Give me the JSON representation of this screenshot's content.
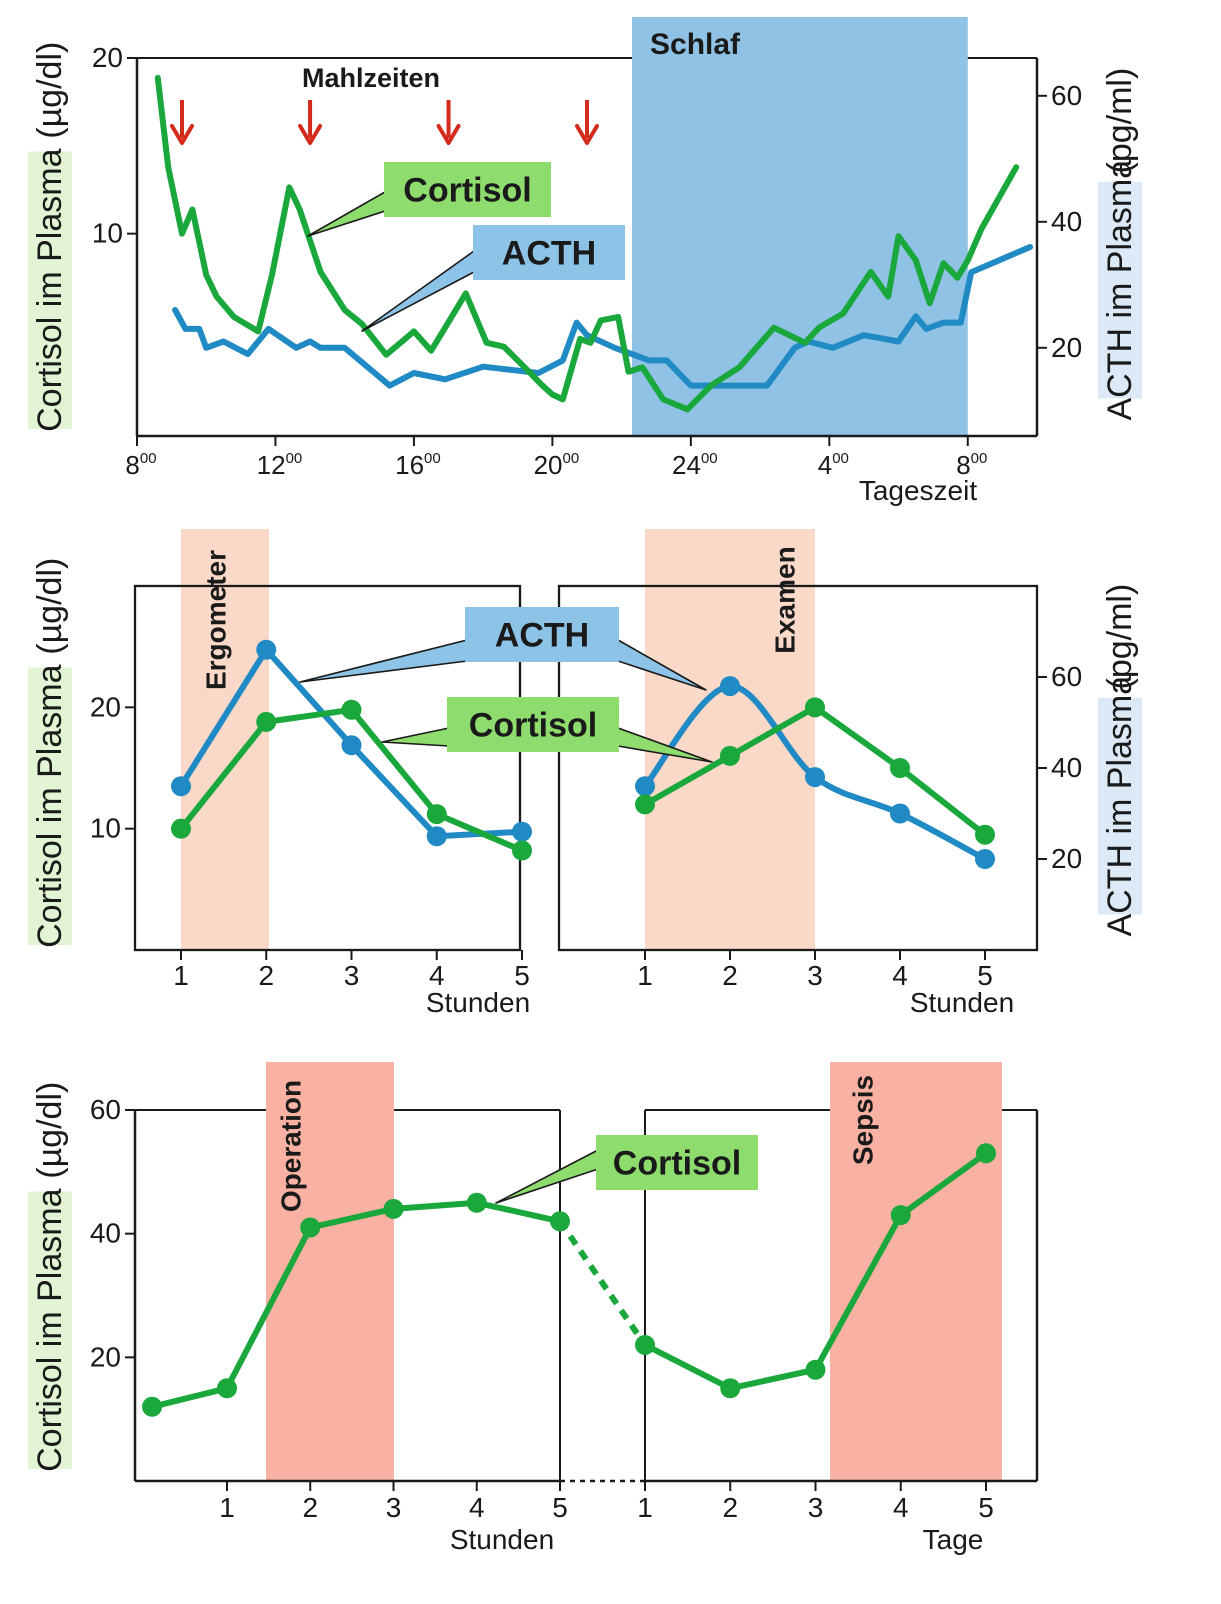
{
  "colors": {
    "cortisol": "#1aa83c",
    "acth": "#1f8ac4",
    "cortisol_box": "#8edc6e",
    "acth_box": "#8cc3e6",
    "schlaf_band": "#8fc2e4",
    "light_band": "#fbd9c9",
    "strong_band": "#f8b1a2",
    "arrow": "#d42a1b",
    "axis_label_green_bg": "#e3f4d4",
    "axis_label_blue_bg": "#dbeaf6"
  },
  "icons": {
    "meal_marker": "red-down-arrow-icon"
  },
  "labels": {
    "cortisol_axis": "Cortisol im Plasma",
    "cortisol_unit": "(µg/dl)",
    "acth_axis": "ACTH im Plasma",
    "acth_unit": "(pg/ml)",
    "cortisol": "Cortisol",
    "acth": "ACTH"
  },
  "chart_data": [
    {
      "type": "line",
      "xlabel": "Tageszeit",
      "x_ticks": [
        {
          "base": "8",
          "sup": "00"
        },
        {
          "base": "12",
          "sup": "00"
        },
        {
          "base": "16",
          "sup": "00"
        },
        {
          "base": "20",
          "sup": "00"
        },
        {
          "base": "24",
          "sup": "00"
        },
        {
          "base": "4",
          "sup": "00"
        },
        {
          "base": "8",
          "sup": "00"
        }
      ],
      "xlim": [
        8,
        34
      ],
      "ylim_left": [
        4.5,
        20
      ],
      "ylim_right": [
        6,
        66
      ],
      "y_ticks_left": [
        "10",
        "20"
      ],
      "y_ticks_right": [
        "20",
        "40",
        "60"
      ],
      "annotations": {
        "meals": "Mahlzeiten",
        "sleep": "Schlaf",
        "meal_times": [
          9.3,
          13.0,
          17.0,
          21.0
        ],
        "sleep_range": [
          22.3,
          32.0
        ]
      },
      "series": [
        {
          "name": "Cortisol",
          "axis": "left",
          "x": [
            8.6,
            8.9,
            9.3,
            9.6,
            10.0,
            10.3,
            10.8,
            11.5,
            11.9,
            12.4,
            12.7,
            13.3,
            14.0,
            14.5,
            15.2,
            16.0,
            16.5,
            16.9,
            17.5,
            18.1,
            18.6,
            19.2,
            19.7,
            20.0,
            20.3,
            20.8,
            21.1,
            21.4,
            21.9,
            22.2,
            22.6,
            23.2,
            23.9,
            24.6,
            25.4,
            26.4,
            27.3,
            27.7,
            28.4,
            29.2,
            29.7,
            30.0,
            30.5,
            30.9,
            31.3,
            31.7,
            32.0,
            32.4,
            33.4
          ],
          "y": [
            18.5,
            13.0,
            10.0,
            11.0,
            8.5,
            7.8,
            7.2,
            6.8,
            8.5,
            12.0,
            11.0,
            8.6,
            7.4,
            7.0,
            6.2,
            6.8,
            6.3,
            6.9,
            7.9,
            6.5,
            6.4,
            5.9,
            5.5,
            5.3,
            5.2,
            6.6,
            6.5,
            7.1,
            7.2,
            5.8,
            5.9,
            5.2,
            5.0,
            5.5,
            5.9,
            6.9,
            6.5,
            6.9,
            7.3,
            8.6,
            7.8,
            9.9,
            9.0,
            7.6,
            8.9,
            8.4,
            9.0,
            10.2,
            13.0
          ]
        },
        {
          "name": "ACTH",
          "axis": "right",
          "x": [
            9.1,
            9.4,
            9.8,
            10.0,
            10.5,
            11.2,
            11.8,
            12.6,
            13.0,
            13.3,
            14.0,
            15.3,
            16.0,
            16.9,
            18.0,
            19.6,
            20.3,
            20.7,
            21.0,
            21.8,
            22.8,
            23.3,
            24.0,
            25.0,
            26.2,
            27.0,
            27.4,
            28.1,
            29.0,
            30.0,
            30.5,
            30.8,
            31.3,
            31.8,
            32.1,
            33.8
          ],
          "y": [
            26,
            23,
            23,
            20,
            21,
            19,
            23,
            20,
            21,
            20,
            20,
            14,
            16,
            15,
            17,
            16,
            18,
            24,
            22,
            20,
            18,
            18,
            14,
            14,
            14,
            20,
            21,
            20,
            22,
            21,
            25,
            23,
            24,
            24,
            32,
            36
          ]
        }
      ]
    },
    {
      "type": "line",
      "panels": [
        "Ergometer",
        "Examen"
      ],
      "xlabel": "Stunden",
      "x_ticks": [
        "1",
        "2",
        "3",
        "4",
        "5"
      ],
      "y_ticks_left": [
        "10",
        "20"
      ],
      "y_ticks_right": [
        "20",
        "40",
        "60"
      ],
      "ylim_left": [
        0,
        30
      ],
      "ylim_right": [
        0,
        80
      ],
      "series": [
        {
          "name": "ACTH",
          "axis": "right",
          "panel": "Ergometer",
          "x": [
            1,
            2,
            3,
            4,
            5
          ],
          "y": [
            36,
            66,
            45,
            25,
            26
          ]
        },
        {
          "name": "Cortisol",
          "axis": "left",
          "panel": "Ergometer",
          "x": [
            1,
            2,
            3,
            4,
            5
          ],
          "y": [
            10,
            18.8,
            19.8,
            11.2,
            8.2
          ]
        },
        {
          "name": "ACTH",
          "axis": "right",
          "panel": "Examen",
          "x": [
            1,
            2,
            3,
            4,
            5
          ],
          "y": [
            36,
            58,
            38,
            30,
            20
          ]
        },
        {
          "name": "Cortisol",
          "axis": "left",
          "panel": "Examen",
          "x": [
            1,
            2,
            3,
            4,
            5
          ],
          "y": [
            12,
            16,
            20,
            15,
            9.5
          ]
        }
      ]
    },
    {
      "type": "line",
      "panels": [
        "Operation",
        "Sepsis"
      ],
      "xlabels": [
        "Stunden",
        "Tage"
      ],
      "x_ticks_left": [
        "1",
        "2",
        "3",
        "4",
        "5"
      ],
      "x_ticks_right": [
        "1",
        "2",
        "3",
        "4",
        "5"
      ],
      "y_ticks_left": [
        "20",
        "40",
        "60"
      ],
      "ylim_left": [
        0,
        60
      ],
      "series": [
        {
          "name": "Cortisol",
          "axis": "left",
          "panel": "Operation",
          "x": [
            0.1,
            1,
            2,
            3,
            4,
            5
          ],
          "y": [
            12,
            15,
            41,
            44,
            45,
            42
          ]
        },
        {
          "name": "Cortisol",
          "axis": "left",
          "panel": "Sepsis",
          "x": [
            1,
            2,
            3,
            4,
            5
          ],
          "y": [
            22,
            15,
            18,
            43,
            53
          ]
        }
      ],
      "connector": {
        "from": [
          "Operation",
          5,
          42
        ],
        "to": [
          "Sepsis",
          1,
          22
        ],
        "style": "dashed"
      }
    }
  ]
}
